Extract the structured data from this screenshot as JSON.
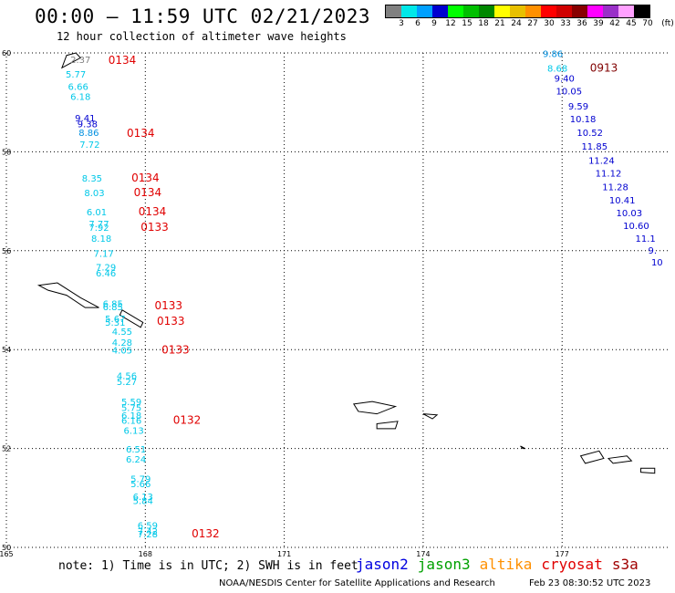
{
  "header": {
    "title": "00:00 – 11:59 UTC 02/21/2023",
    "subtitle": "12 hour collection of altimeter wave heights"
  },
  "legend": {
    "unit": "(ft)",
    "labels": [
      "3",
      "6",
      "9",
      "12",
      "15",
      "18",
      "21",
      "24",
      "27",
      "30",
      "33",
      "36",
      "39",
      "42",
      "45",
      "70"
    ],
    "colors": [
      "#808080",
      "#00e8e8",
      "#00a0ff",
      "#0000d0",
      "#00ff00",
      "#00c000",
      "#008800",
      "#ffff00",
      "#e8c000",
      "#ff9000",
      "#ff0000",
      "#d00000",
      "#880000",
      "#ff00ff",
      "#9a30c8",
      "#ffa0ff",
      "#000000"
    ]
  },
  "map": {
    "lat_ticks": [
      "60",
      "58",
      "56",
      "54",
      "52",
      "50"
    ],
    "lon_ticks": [
      "165",
      "168",
      "171",
      "174",
      "177"
    ],
    "lat_range": [
      50,
      60
    ],
    "lon_range": [
      165,
      179.3
    ]
  },
  "track_west": [
    {
      "v": "2.37",
      "lat": 59.8,
      "lon": 166.6,
      "c": "#808080"
    },
    {
      "v": "5.77",
      "lat": 59.5,
      "lon": 166.5,
      "c": "#00c8e8"
    },
    {
      "v": "6.66",
      "lat": 59.25,
      "lon": 166.55,
      "c": "#00c8e8"
    },
    {
      "v": "6.18",
      "lat": 59.05,
      "lon": 166.6,
      "c": "#00c8e8"
    },
    {
      "v": "9.41",
      "lat": 58.62,
      "lon": 166.7,
      "c": "#0000d0"
    },
    {
      "v": "9.38",
      "lat": 58.5,
      "lon": 166.75,
      "c": "#0000d0"
    },
    {
      "v": "8.86",
      "lat": 58.32,
      "lon": 166.78,
      "c": "#0090e0"
    },
    {
      "v": "7.72",
      "lat": 58.08,
      "lon": 166.8,
      "c": "#00c8e8"
    },
    {
      "v": "8.35",
      "lat": 57.4,
      "lon": 166.85,
      "c": "#00c8e8"
    },
    {
      "v": "8.03",
      "lat": 57.1,
      "lon": 166.9,
      "c": "#00c8e8"
    },
    {
      "v": "6.01",
      "lat": 56.72,
      "lon": 166.95,
      "c": "#00c8e8"
    },
    {
      "v": "7.77",
      "lat": 56.48,
      "lon": 167.0,
      "c": "#00c8e8"
    },
    {
      "v": "7.92",
      "lat": 56.4,
      "lon": 167.0,
      "c": "#00c8e8"
    },
    {
      "v": "8.18",
      "lat": 56.18,
      "lon": 167.05,
      "c": "#00c8e8"
    },
    {
      "v": "7.17",
      "lat": 55.88,
      "lon": 167.1,
      "c": "#00c8e8"
    },
    {
      "v": "7.29",
      "lat": 55.6,
      "lon": 167.15,
      "c": "#00c8e8"
    },
    {
      "v": "6.46",
      "lat": 55.48,
      "lon": 167.15,
      "c": "#00c8e8"
    },
    {
      "v": "6.85",
      "lat": 54.86,
      "lon": 167.3,
      "c": "#00c8e8"
    },
    {
      "v": "6.85",
      "lat": 54.8,
      "lon": 167.3,
      "c": "#00c8e8"
    },
    {
      "v": "5.67",
      "lat": 54.56,
      "lon": 167.35,
      "c": "#00c8e8"
    },
    {
      "v": "5.31",
      "lat": 54.48,
      "lon": 167.35,
      "c": "#00c8e8"
    },
    {
      "v": "4.55",
      "lat": 54.3,
      "lon": 167.5,
      "c": "#00c8e8"
    },
    {
      "v": "4.28",
      "lat": 54.08,
      "lon": 167.5,
      "c": "#00c8e8"
    },
    {
      "v": "4.05",
      "lat": 53.92,
      "lon": 167.5,
      "c": "#00c8e8"
    },
    {
      "v": "4.56",
      "lat": 53.4,
      "lon": 167.6,
      "c": "#00c8e8"
    },
    {
      "v": "5.27",
      "lat": 53.28,
      "lon": 167.6,
      "c": "#00c8e8"
    },
    {
      "v": "5.59",
      "lat": 52.88,
      "lon": 167.7,
      "c": "#00c8e8"
    },
    {
      "v": "5.75",
      "lat": 52.76,
      "lon": 167.7,
      "c": "#00c8e8"
    },
    {
      "v": "6.18",
      "lat": 52.6,
      "lon": 167.7,
      "c": "#00c8e8"
    },
    {
      "v": "6.16",
      "lat": 52.5,
      "lon": 167.7,
      "c": "#00c8e8"
    },
    {
      "v": "6.13",
      "lat": 52.3,
      "lon": 167.75,
      "c": "#00c8e8"
    },
    {
      "v": "6.51",
      "lat": 51.92,
      "lon": 167.8,
      "c": "#00c8e8"
    },
    {
      "v": "6.24",
      "lat": 51.72,
      "lon": 167.8,
      "c": "#00c8e8"
    },
    {
      "v": "5.79",
      "lat": 51.32,
      "lon": 167.9,
      "c": "#00c8e8"
    },
    {
      "v": "5.66",
      "lat": 51.22,
      "lon": 167.9,
      "c": "#00c8e8"
    },
    {
      "v": "6.13",
      "lat": 50.96,
      "lon": 167.95,
      "c": "#00c8e8"
    },
    {
      "v": "5.84",
      "lat": 50.88,
      "lon": 167.95,
      "c": "#00c8e8"
    },
    {
      "v": "6.59",
      "lat": 50.38,
      "lon": 168.05,
      "c": "#00c8e8"
    },
    {
      "v": "7.42",
      "lat": 50.26,
      "lon": 168.05,
      "c": "#00c8e8"
    },
    {
      "v": "7.28",
      "lat": 50.2,
      "lon": 168.05,
      "c": "#00c8e8"
    }
  ],
  "track_east": [
    {
      "v": "9.86",
      "lat": 59.92,
      "lon": 176.8,
      "c": "#0090e0"
    },
    {
      "v": "8.68",
      "lat": 59.62,
      "lon": 176.9,
      "c": "#00c8e8"
    },
    {
      "v": "9.40",
      "lat": 59.42,
      "lon": 177.05,
      "c": "#0000d0"
    },
    {
      "v": "10.05",
      "lat": 59.16,
      "lon": 177.15,
      "c": "#0000d0"
    },
    {
      "v": "9.59",
      "lat": 58.86,
      "lon": 177.35,
      "c": "#0000d0"
    },
    {
      "v": "10.18",
      "lat": 58.6,
      "lon": 177.45,
      "c": "#0000d0"
    },
    {
      "v": "10.52",
      "lat": 58.32,
      "lon": 177.6,
      "c": "#0000d0"
    },
    {
      "v": "11.85",
      "lat": 58.04,
      "lon": 177.7,
      "c": "#0000d0"
    },
    {
      "v": "11.24",
      "lat": 57.76,
      "lon": 177.85,
      "c": "#0000d0"
    },
    {
      "v": "11.12",
      "lat": 57.5,
      "lon": 178.0,
      "c": "#0000d0"
    },
    {
      "v": "11.28",
      "lat": 57.22,
      "lon": 178.15,
      "c": "#0000d0"
    },
    {
      "v": "10.41",
      "lat": 56.96,
      "lon": 178.3,
      "c": "#0000d0"
    },
    {
      "v": "10.03",
      "lat": 56.7,
      "lon": 178.45,
      "c": "#0000d0"
    },
    {
      "v": "10.60",
      "lat": 56.44,
      "lon": 178.6,
      "c": "#0000d0"
    },
    {
      "v": "11.1",
      "lat": 56.18,
      "lon": 178.8,
      "c": "#0000d0"
    },
    {
      "v": "9.",
      "lat": 55.94,
      "lon": 178.95,
      "c": "#0000d0"
    },
    {
      "v": "10",
      "lat": 55.7,
      "lon": 179.05,
      "c": "#0000d0"
    }
  ],
  "time_labels": [
    {
      "t": "0134",
      "lat": 59.78,
      "lon": 167.2,
      "c": "#e00000"
    },
    {
      "t": "0134",
      "lat": 58.3,
      "lon": 167.6,
      "c": "#e00000"
    },
    {
      "t": "0134",
      "lat": 57.4,
      "lon": 167.7,
      "c": "#e00000"
    },
    {
      "t": "0134",
      "lat": 57.1,
      "lon": 167.75,
      "c": "#e00000"
    },
    {
      "t": "0134",
      "lat": 56.72,
      "lon": 167.85,
      "c": "#e00000"
    },
    {
      "t": "0133",
      "lat": 56.4,
      "lon": 167.9,
      "c": "#e00000"
    },
    {
      "t": "0133",
      "lat": 54.82,
      "lon": 168.2,
      "c": "#e00000"
    },
    {
      "t": "0133",
      "lat": 54.5,
      "lon": 168.25,
      "c": "#e00000"
    },
    {
      "t": "0133",
      "lat": 53.92,
      "lon": 168.35,
      "c": "#e00000"
    },
    {
      "t": "0132",
      "lat": 52.5,
      "lon": 168.6,
      "c": "#e00000"
    },
    {
      "t": "0132",
      "lat": 50.2,
      "lon": 169.0,
      "c": "#e00000"
    },
    {
      "t": "0913",
      "lat": 59.62,
      "lon": 177.6,
      "c": "#800000"
    }
  ],
  "footer": {
    "note": "note: 1) Time is in UTC; 2) SWH is in feet",
    "satellites": [
      {
        "name": "jason2",
        "color": "#0000e0"
      },
      {
        "name": "jason3",
        "color": "#00a000"
      },
      {
        "name": "altika",
        "color": "#ff9000"
      },
      {
        "name": "cryosat",
        "color": "#e00000"
      },
      {
        "name": "s3a",
        "color": "#a00000"
      }
    ],
    "credit": "NOAA/NESDIS Center for Satellite Applications and Research",
    "stamp": "Feb 23 08:30:52 UTC 2023"
  }
}
